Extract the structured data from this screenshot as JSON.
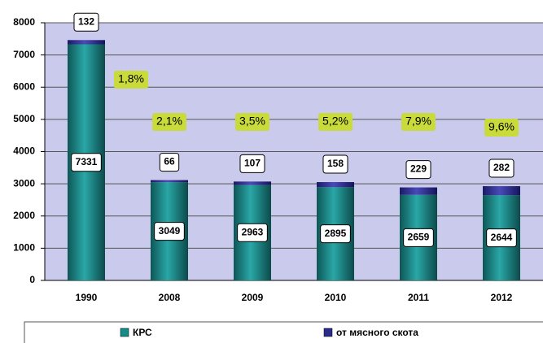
{
  "chart_data": {
    "type": "stacked_bar",
    "categories": [
      "1990",
      "2008",
      "2009",
      "2010",
      "2011",
      "2012"
    ],
    "series": [
      {
        "name": "КРС",
        "color": "#178a8a",
        "values": [
          7331,
          3049,
          2963,
          2895,
          2659,
          2644
        ]
      },
      {
        "name": "от мясного скота",
        "color": "#2b2b8c",
        "values": [
          132,
          66,
          107,
          158,
          229,
          282
        ]
      }
    ],
    "annotations": [
      "1,8%",
      "2,1%",
      "3,5%",
      "5,2%",
      "7,9%",
      "9,6%"
    ],
    "ylim": [
      0,
      8000
    ],
    "yticks": [
      0,
      1000,
      2000,
      3000,
      4000,
      5000,
      6000,
      7000,
      8000
    ],
    "grid": true
  }
}
